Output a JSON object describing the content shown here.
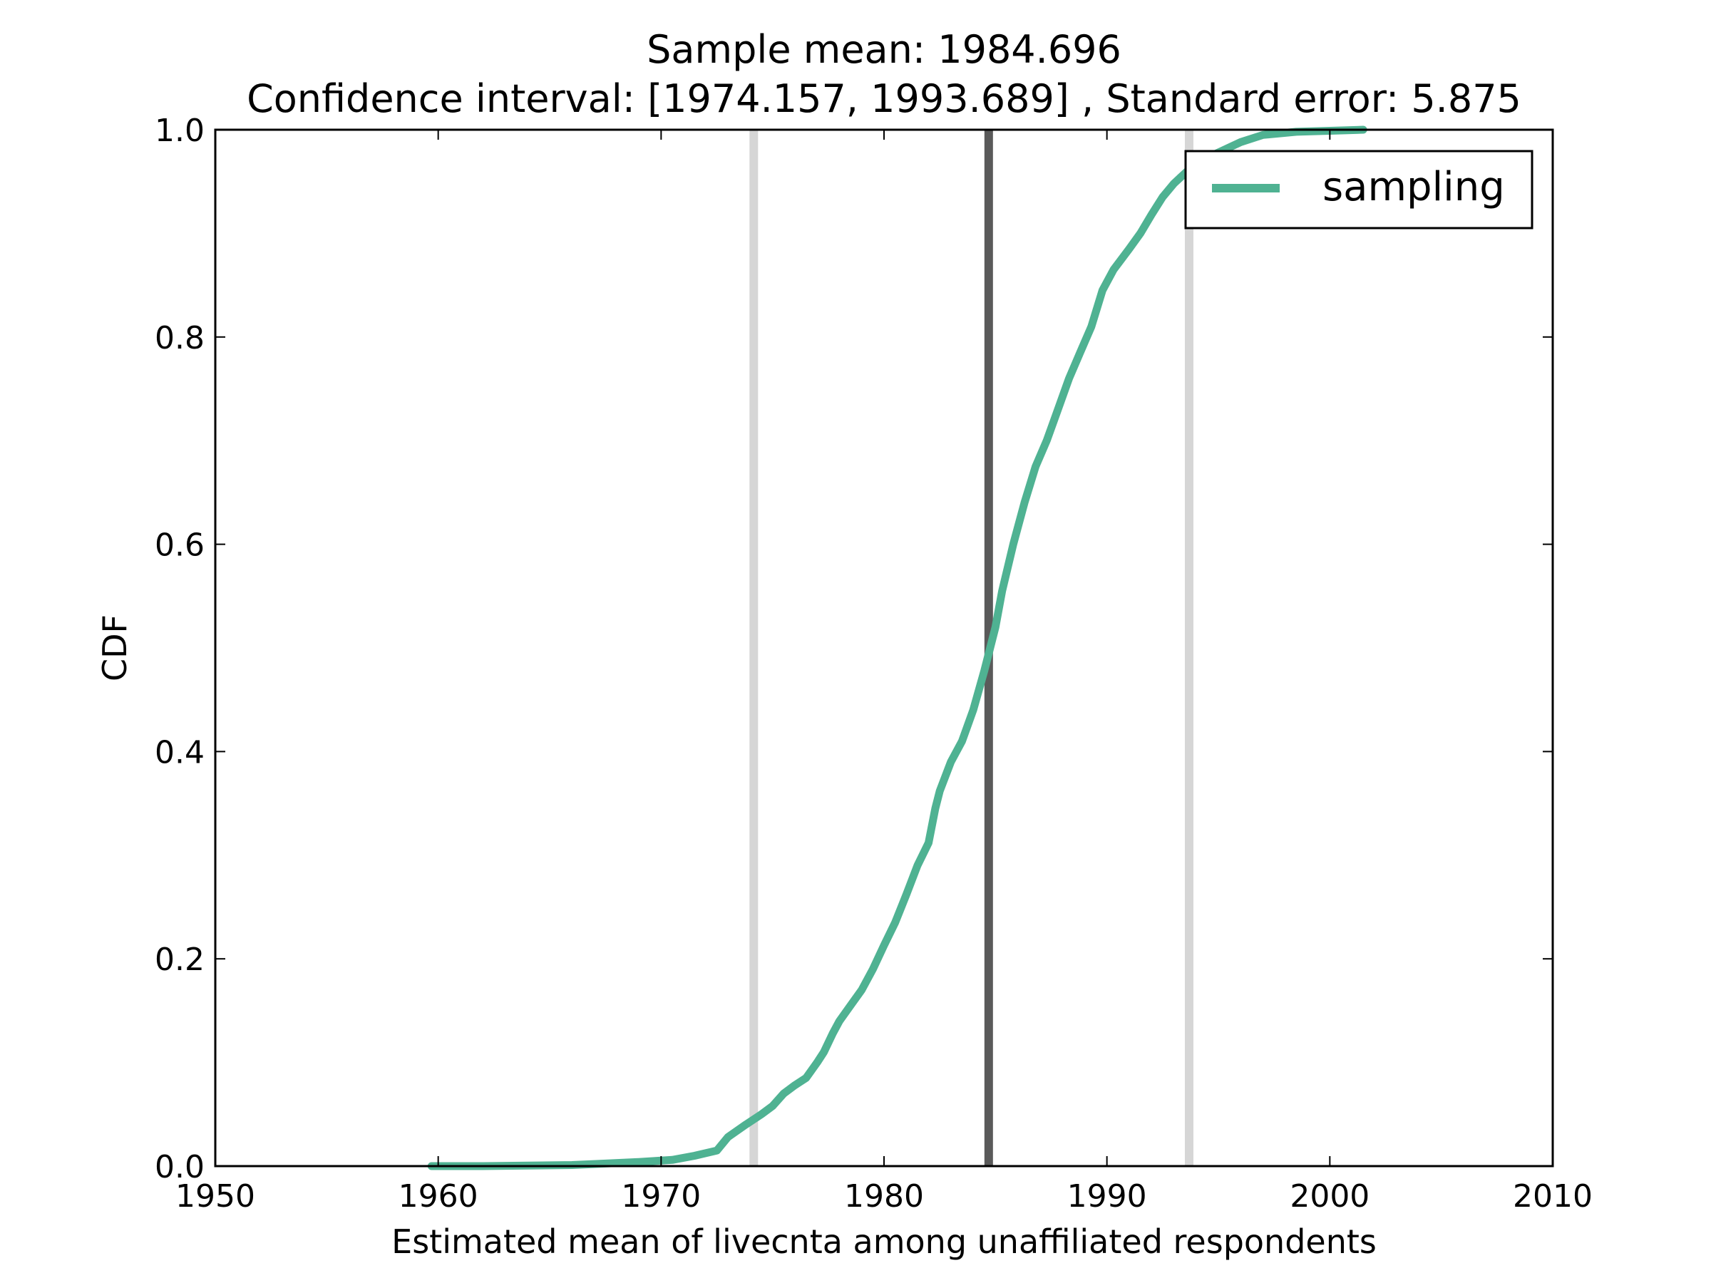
{
  "chart_data": {
    "type": "line",
    "title": "Sample mean: 1984.696",
    "subtitle": "Confidence interval: [1974.157, 1993.689] , Standard error: 5.875",
    "xlabel": "Estimated mean of livecnta among unaffiliated respondents",
    "ylabel": "CDF",
    "xlim": [
      1950,
      2010
    ],
    "ylim": [
      0.0,
      1.0
    ],
    "x_ticks": [
      "1950",
      "1960",
      "1970",
      "1980",
      "1990",
      "2000",
      "2010"
    ],
    "y_ticks": [
      "0.0",
      "0.2",
      "0.4",
      "0.6",
      "0.8",
      "1.0"
    ],
    "grid": false,
    "legend_position": "top-right",
    "vertical_lines": [
      {
        "x": 1974.157,
        "color": "#d6d6d6"
      },
      {
        "x": 1984.696,
        "color": "#5a5a5a"
      },
      {
        "x": 1993.689,
        "color": "#d6d6d6"
      }
    ],
    "series": [
      {
        "name": "sampling",
        "color": "#4fb292",
        "points": [
          [
            1959.7,
            0.0
          ],
          [
            1962.0,
            0.0
          ],
          [
            1966.0,
            0.001
          ],
          [
            1967.0,
            0.002
          ],
          [
            1969.0,
            0.004
          ],
          [
            1970.5,
            0.006
          ],
          [
            1971.5,
            0.01
          ],
          [
            1972.5,
            0.015
          ],
          [
            1973.0,
            0.028
          ],
          [
            1973.8,
            0.04
          ],
          [
            1974.5,
            0.05
          ],
          [
            1975.0,
            0.058
          ],
          [
            1975.5,
            0.07
          ],
          [
            1976.0,
            0.078
          ],
          [
            1976.5,
            0.085
          ],
          [
            1977.0,
            0.1
          ],
          [
            1977.3,
            0.11
          ],
          [
            1977.7,
            0.128
          ],
          [
            1978.0,
            0.14
          ],
          [
            1978.5,
            0.155
          ],
          [
            1979.0,
            0.17
          ],
          [
            1979.5,
            0.19
          ],
          [
            1980.0,
            0.213
          ],
          [
            1980.5,
            0.235
          ],
          [
            1981.0,
            0.262
          ],
          [
            1981.5,
            0.29
          ],
          [
            1982.0,
            0.312
          ],
          [
            1982.3,
            0.345
          ],
          [
            1982.5,
            0.362
          ],
          [
            1983.0,
            0.39
          ],
          [
            1983.5,
            0.41
          ],
          [
            1984.0,
            0.44
          ],
          [
            1984.5,
            0.478
          ],
          [
            1985.0,
            0.52
          ],
          [
            1985.3,
            0.555
          ],
          [
            1985.8,
            0.6
          ],
          [
            1986.3,
            0.64
          ],
          [
            1986.8,
            0.675
          ],
          [
            1987.3,
            0.7
          ],
          [
            1987.8,
            0.73
          ],
          [
            1988.3,
            0.76
          ],
          [
            1988.8,
            0.785
          ],
          [
            1989.3,
            0.81
          ],
          [
            1989.8,
            0.845
          ],
          [
            1990.3,
            0.865
          ],
          [
            1991.0,
            0.885
          ],
          [
            1991.5,
            0.9
          ],
          [
            1992.0,
            0.918
          ],
          [
            1992.5,
            0.935
          ],
          [
            1993.0,
            0.948
          ],
          [
            1993.5,
            0.958
          ],
          [
            1994.0,
            0.968
          ],
          [
            1995.0,
            0.978
          ],
          [
            1996.0,
            0.988
          ],
          [
            1997.0,
            0.995
          ],
          [
            1998.5,
            0.998
          ],
          [
            2000.0,
            0.999
          ],
          [
            2001.5,
            1.0
          ]
        ]
      }
    ]
  }
}
